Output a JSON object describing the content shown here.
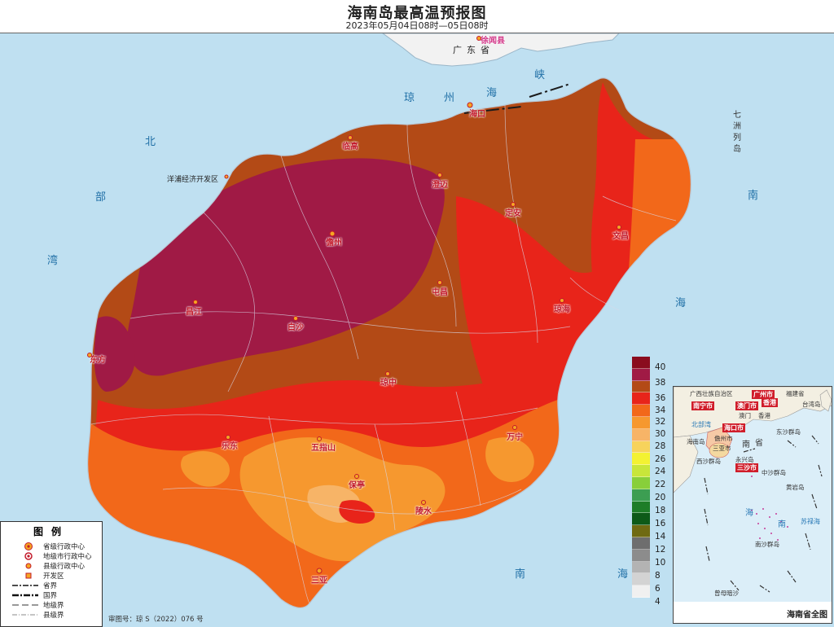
{
  "header": {
    "title": "海南岛最高温预报图",
    "subtitle": "2023年05月04日08时—05日08时"
  },
  "sea_labels": {
    "qiongzhou_strait": [
      "琼",
      "州",
      "海",
      "峡"
    ],
    "beibu_gulf": [
      "北",
      "部",
      "湾"
    ],
    "south_china_sea": [
      "南",
      "海"
    ],
    "qizhou_islands": "七洲列岛"
  },
  "mainland": {
    "province": "广东省",
    "county": "徐闻县"
  },
  "places": {
    "haikou": "海口",
    "lingao": "临高",
    "chengmai": "澄迈",
    "dingan": "定安",
    "wenchang": "文昌",
    "danzhou": "儋州",
    "tunchang": "屯昌",
    "qionghai": "琼海",
    "changjiang": "昌江",
    "baisha": "白沙",
    "dongfang": "东方",
    "qiongzhong": "琼中",
    "ledong": "乐东",
    "wuzhishan": "五指山",
    "wanning": "万宁",
    "baoting": "保亭",
    "lingshui": "陵水",
    "sanya": "三亚",
    "yangpu": "洋浦经济开发区"
  },
  "color_scale": {
    "ticks": [
      "40",
      "38",
      "36",
      "34",
      "32",
      "30",
      "28",
      "26",
      "24",
      "22",
      "20",
      "18",
      "16",
      "14",
      "12",
      "10",
      "8",
      "6",
      "4"
    ],
    "colors": [
      "#8a0c1e",
      "#a01a45",
      "#b34a16",
      "#e8241a",
      "#f2681a",
      "#f6982f",
      "#f7b467",
      "#f7d35c",
      "#f3f232",
      "#c8e63a",
      "#88cf3a",
      "#3c9e52",
      "#1e7d28",
      "#0d5a18",
      "#6f6a12",
      "#6e6e6e",
      "#8c8c8c",
      "#b3b3b3",
      "#d3d3d3",
      "#f0f0f0"
    ]
  },
  "legend": {
    "title": "图例",
    "items": [
      "省级行政中心",
      "地级市行政中心",
      "县级行政中心",
      "开发区",
      "省界",
      "国界",
      "地级界",
      "县级界"
    ]
  },
  "approval": "审图号：琼 S（2022）076 号",
  "inset": {
    "name": "海南省全图",
    "labels": {
      "guangxi": "广西壮族自治区",
      "guangzhou": "广州市",
      "fujian": "福建省",
      "nanning": "南宁市",
      "macau": "澳门",
      "hongkong": "香港",
      "taiwan_island": "台湾岛",
      "beibu": "北部湾",
      "haikou": "海口市",
      "dongsha": "东沙群岛",
      "hainan_island": "海南岛",
      "danzhou": "儋州市",
      "sanya": "三亚市",
      "xisha": "西沙群岛",
      "yongxing": "永兴岛",
      "sansha": "三沙市",
      "zhongsha": "中沙群岛",
      "huangyan": "黄岩岛",
      "nansha": "南沙群岛",
      "zengmu": "曾母暗沙",
      "sulu": "苏禄海",
      "nan": "南",
      "hai": "海",
      "sheng": "省",
      "hai2": "海",
      "nan2": "南",
      "hainan_prov": "海南省",
      "aomen": "澳门市",
      "xianggang": "香港",
      "aomen2": "澳门"
    }
  }
}
